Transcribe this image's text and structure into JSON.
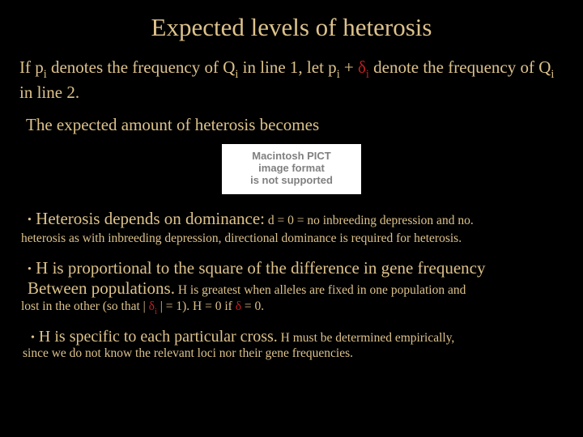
{
  "colors": {
    "background": "#000000",
    "title": "#ddc28b",
    "body": "#ddc28b",
    "red": "#c02020",
    "placeholder_bg": "#ffffff",
    "placeholder_text": "#808080"
  },
  "title": "Expected levels of heterosis",
  "intro": {
    "t1": "If p",
    "t2": " denotes the frequency of Q",
    "t3": " in line 1, let p",
    "t4": " + ",
    "delta1": "δ",
    "t5": " denote the frequency of Q",
    "t6": " in line 2.",
    "sub_i": "i"
  },
  "line2": "The expected amount of heterosis becomes",
  "placeholder": {
    "l1": "Macintosh PICT",
    "l2": "image format",
    "l3": "is not supported"
  },
  "b1": {
    "lead": "Heterosis depends on dominance:",
    "tail": "  d = 0  = no inbreeding depression and no.",
    "cont": "heterosis as with inbreeding depression, directional dominance is required for heterosis."
  },
  "b2": {
    "l1a": "H is proportional to the square of the difference in gene frequency",
    "l2a": "Between populations.",
    "l2b": "  H is greatest when alleles are fixed in one population and",
    "cont1": "lost in the other (so that | ",
    "delta": "δ",
    "sub_i": "i",
    "cont2": " | = 1).  H = 0  if  ",
    "cont3": " = 0."
  },
  "b3": {
    "lead": "H is specific to each particular cross.",
    "tail": " H  must be determined empirically,",
    "cont": "since we do not know the relevant loci nor their gene frequencies."
  },
  "bullet_char": "•"
}
